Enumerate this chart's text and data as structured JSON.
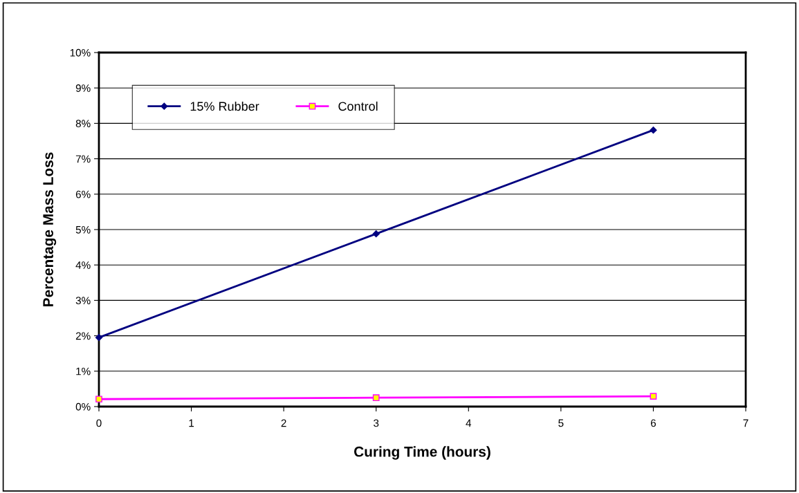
{
  "chart_data": {
    "type": "line",
    "xlabel": "Curing Time (hours)",
    "ylabel": "Percentage Mass Loss",
    "series": [
      {
        "name": "15% Rubber",
        "color": "#000080",
        "marker": "diamond",
        "x": [
          0,
          3,
          6
        ],
        "values": [
          1.95,
          4.88,
          7.81
        ]
      },
      {
        "name": "Control",
        "color": "#ff00ff",
        "marker": "square",
        "x": [
          0,
          3,
          6
        ],
        "values": [
          0.21,
          0.25,
          0.29
        ]
      }
    ],
    "xlim": [
      0,
      7
    ],
    "xticks": [
      0,
      1,
      2,
      3,
      4,
      5,
      6,
      7
    ],
    "ylim": [
      0,
      10
    ],
    "yticks": [
      {
        "value": 0,
        "label": "0%"
      },
      {
        "value": 1,
        "label": "1%"
      },
      {
        "value": 2,
        "label": "2%"
      },
      {
        "value": 3,
        "label": "3%"
      },
      {
        "value": 4,
        "label": "4%"
      },
      {
        "value": 5,
        "label": "5%"
      },
      {
        "value": 6,
        "label": "6%"
      },
      {
        "value": 7,
        "label": "7%"
      },
      {
        "value": 8,
        "label": "8%"
      },
      {
        "value": 9,
        "label": "9%"
      },
      {
        "value": 10,
        "label": "10%"
      }
    ],
    "grid": "y",
    "legend": "top left"
  }
}
